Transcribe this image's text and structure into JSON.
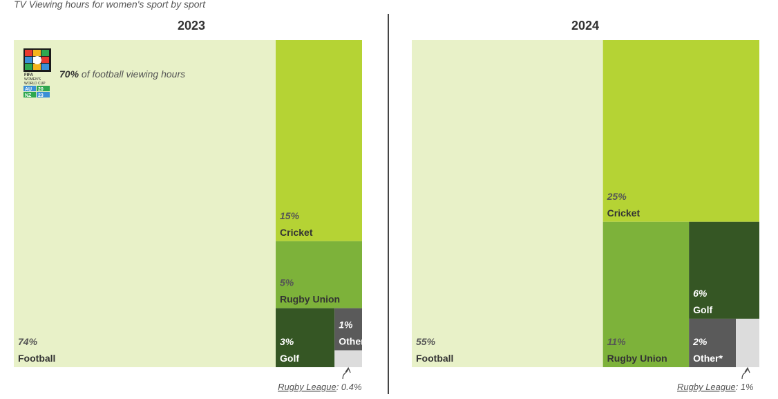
{
  "subtitle": "TV Viewing hours for women's sport by sport",
  "chart_data": [
    {
      "type": "treemap",
      "title": "2023",
      "annotation": {
        "value": "70%",
        "text": "of football viewing hours"
      },
      "logo": {
        "icon": "fifa-womens-world-cup-2023-logo",
        "lines": [
          "FIFA",
          "WOMEN'S",
          "WORLD CUP",
          "AU",
          "NZ",
          "20",
          "23"
        ]
      },
      "callout": {
        "label": "Rugby League",
        "value": ": 0.4%"
      },
      "items": [
        {
          "name": "Football",
          "value": 74,
          "pct": "74%",
          "color": "#e8f1c8"
        },
        {
          "name": "Cricket",
          "value": 15,
          "pct": "15%",
          "color": "#b5d334"
        },
        {
          "name": "Rugby Union",
          "value": 5,
          "pct": "5%",
          "color": "#7db23a"
        },
        {
          "name": "Golf",
          "value": 3,
          "pct": "3%",
          "color": "#355624"
        },
        {
          "name": "Other*",
          "value": 1,
          "pct": "1%",
          "color": "#5a5a5a"
        },
        {
          "name": "Rugby League",
          "value": 0.4,
          "pct": "",
          "color": "#dcdcdc"
        }
      ]
    },
    {
      "type": "treemap",
      "title": "2024",
      "callout": {
        "label": "Rugby League",
        "value": ": 1%"
      },
      "items": [
        {
          "name": "Football",
          "value": 55,
          "pct": "55%",
          "color": "#e8f1c8"
        },
        {
          "name": "Cricket",
          "value": 25,
          "pct": "25%",
          "color": "#b5d334"
        },
        {
          "name": "Rugby Union",
          "value": 11,
          "pct": "11%",
          "color": "#7db23a"
        },
        {
          "name": "Golf",
          "value": 6,
          "pct": "6%",
          "color": "#355624"
        },
        {
          "name": "Other*",
          "value": 2,
          "pct": "2%",
          "color": "#5a5a5a"
        },
        {
          "name": "Rugby League",
          "value": 1,
          "pct": "",
          "color": "#dcdcdc"
        }
      ]
    }
  ]
}
